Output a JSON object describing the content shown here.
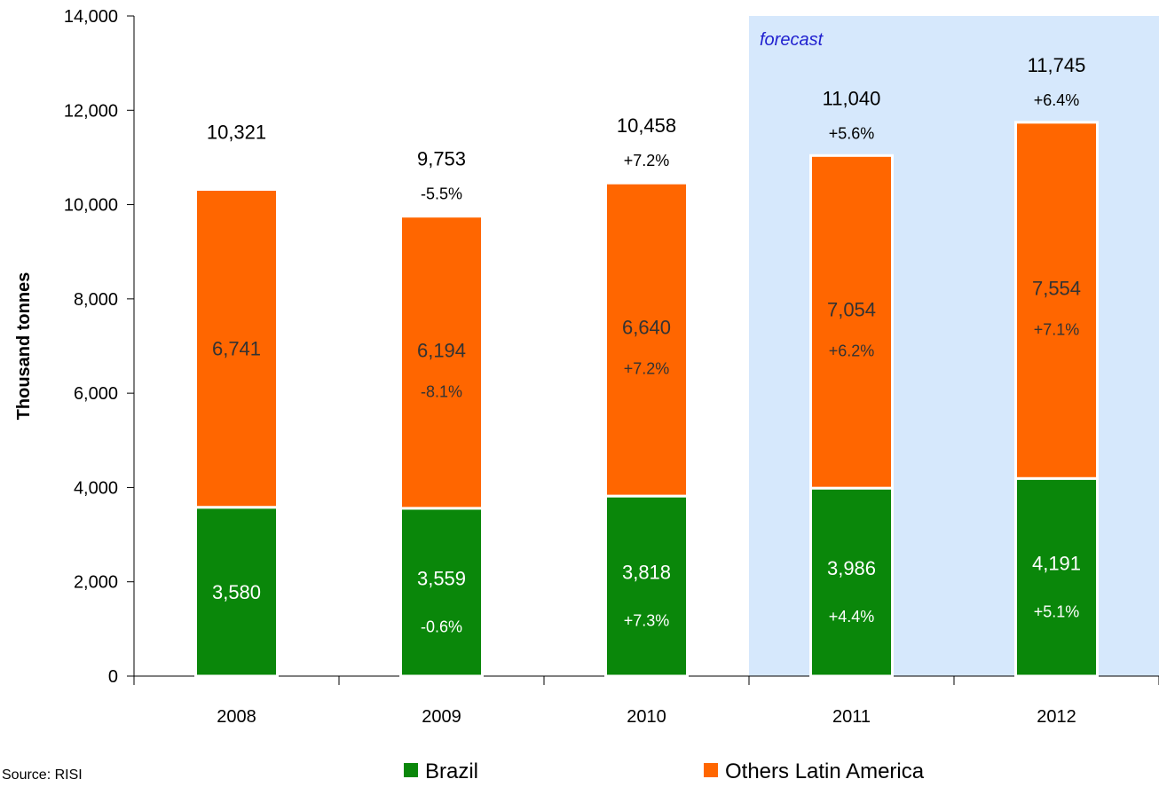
{
  "chart_data": {
    "type": "bar",
    "stacked": true,
    "categories": [
      "2008",
      "2009",
      "2010",
      "2011",
      "2012"
    ],
    "series": [
      {
        "name": "Brazil",
        "color": "#0a870a",
        "values": [
          3580,
          3559,
          3818,
          3986,
          4191
        ],
        "labels": [
          "3,580",
          "3,559",
          "3,818",
          "3,986",
          "4,191"
        ],
        "changes": [
          "",
          "-0.6%",
          "+7.3%",
          "+4.4%",
          "+5.1%"
        ]
      },
      {
        "name": "Others Latin America",
        "color": "#ff6600",
        "values": [
          6741,
          6194,
          6640,
          7054,
          7554
        ],
        "labels": [
          "6,741",
          "6,194",
          "6,640",
          "7,054",
          "7,554"
        ],
        "changes": [
          "",
          "-8.1%",
          "+7.2%",
          "+6.2%",
          "+7.1%"
        ]
      }
    ],
    "totals": {
      "values": [
        10321,
        9753,
        10458,
        11040,
        11745
      ],
      "labels": [
        "10,321",
        "9,753",
        "10,458",
        "11,040",
        "11,745"
      ],
      "changes": [
        "",
        "-5.5%",
        "+7.2%",
        "+5.6%",
        "+6.4%"
      ]
    },
    "ylabel": "Thousand tonnes",
    "ylim": [
      0,
      14000
    ],
    "yticks": [
      0,
      2000,
      4000,
      6000,
      8000,
      10000,
      12000,
      14000
    ],
    "ytick_labels": [
      "0",
      "2,000",
      "4,000",
      "6,000",
      "8,000",
      "10,000",
      "12,000",
      "14,000"
    ],
    "forecast": {
      "label": "forecast",
      "from_category": "2011",
      "color": "#d6e8fc"
    },
    "legend_position": "bottom",
    "grid": false
  },
  "source": "Source: RISI"
}
